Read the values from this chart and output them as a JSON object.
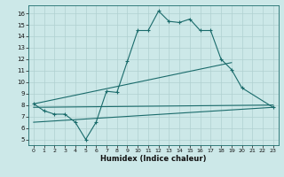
{
  "xlabel": "Humidex (Indice chaleur)",
  "bg_color": "#cce8e8",
  "line_color": "#1a6b6b",
  "grid_color": "#b0d0d0",
  "xlim": [
    -0.5,
    23.5
  ],
  "ylim": [
    4.5,
    16.7
  ],
  "xticks": [
    0,
    1,
    2,
    3,
    4,
    5,
    6,
    7,
    8,
    9,
    10,
    11,
    12,
    13,
    14,
    15,
    16,
    17,
    18,
    19,
    20,
    21,
    22,
    23
  ],
  "yticks": [
    5,
    6,
    7,
    8,
    9,
    10,
    11,
    12,
    13,
    14,
    15,
    16
  ],
  "main_line": {
    "x": [
      0,
      1,
      2,
      3,
      4,
      5,
      6,
      7,
      8,
      9,
      10,
      11,
      12,
      13,
      14,
      15,
      16,
      17,
      18,
      19,
      20,
      23
    ],
    "y": [
      8.1,
      7.5,
      7.2,
      7.2,
      6.5,
      5.0,
      6.5,
      9.2,
      9.1,
      11.8,
      14.5,
      14.5,
      16.2,
      15.3,
      15.2,
      15.5,
      14.5,
      14.5,
      12.0,
      11.1,
      9.5,
      7.8
    ]
  },
  "linear_lines": [
    {
      "x": [
        0,
        19
      ],
      "y": [
        8.1,
        11.7
      ]
    },
    {
      "x": [
        0,
        23
      ],
      "y": [
        7.8,
        8.0
      ]
    },
    {
      "x": [
        0,
        23
      ],
      "y": [
        6.5,
        7.8
      ]
    }
  ]
}
